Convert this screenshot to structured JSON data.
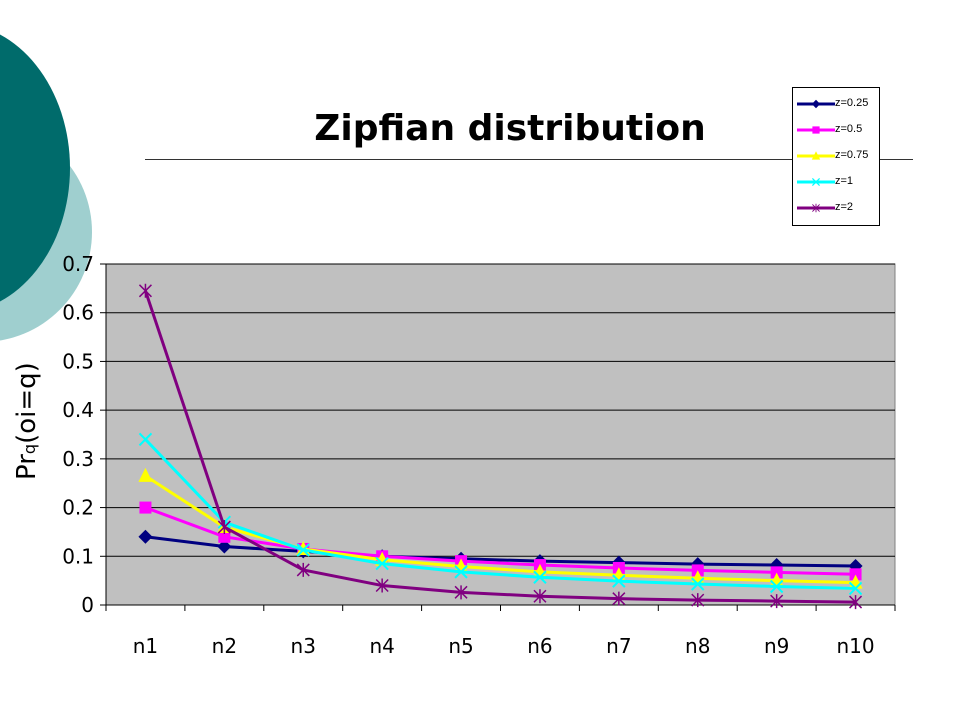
{
  "title": "Zipfian distribution",
  "ylabel": {
    "main": "Pr",
    "sub": "q",
    "rest": "(oi=q)"
  },
  "colors": {
    "plot_bg": "#c0c0c0",
    "deco_dark": "#006b6b",
    "deco_light": "#9fcfcf"
  },
  "chart_data": {
    "type": "line",
    "title": "Zipfian distribution",
    "xlabel": "",
    "ylabel": "Prq(oi=q)",
    "ylim": [
      0,
      0.7
    ],
    "yticks": [
      "0",
      "0.1",
      "0.2",
      "0.3",
      "0.4",
      "0.5",
      "0.6",
      "0.7"
    ],
    "categories": [
      "n1",
      "n2",
      "n3",
      "n4",
      "n5",
      "n6",
      "n7",
      "n8",
      "n9",
      "n10"
    ],
    "grid": true,
    "legend_position": "top-right",
    "series": [
      {
        "name": "z=0.25",
        "color": "#000080",
        "marker": "diamond",
        "values": [
          0.14,
          0.12,
          0.11,
          0.1,
          0.095,
          0.09,
          0.087,
          0.084,
          0.082,
          0.08
        ]
      },
      {
        "name": "z=0.5",
        "color": "#ff00ff",
        "marker": "square",
        "values": [
          0.2,
          0.14,
          0.115,
          0.1,
          0.09,
          0.082,
          0.076,
          0.071,
          0.067,
          0.063
        ]
      },
      {
        "name": "z=0.75",
        "color": "#ffff00",
        "marker": "triangle",
        "values": [
          0.265,
          0.16,
          0.115,
          0.093,
          0.079,
          0.068,
          0.061,
          0.055,
          0.05,
          0.046
        ]
      },
      {
        "name": "z=1",
        "color": "#00ffff",
        "marker": "x",
        "values": [
          0.34,
          0.17,
          0.113,
          0.085,
          0.068,
          0.057,
          0.049,
          0.043,
          0.038,
          0.034
        ]
      },
      {
        "name": "z=2",
        "color": "#800080",
        "marker": "star",
        "values": [
          0.645,
          0.16,
          0.072,
          0.04,
          0.026,
          0.018,
          0.013,
          0.01,
          0.008,
          0.006
        ]
      }
    ]
  }
}
